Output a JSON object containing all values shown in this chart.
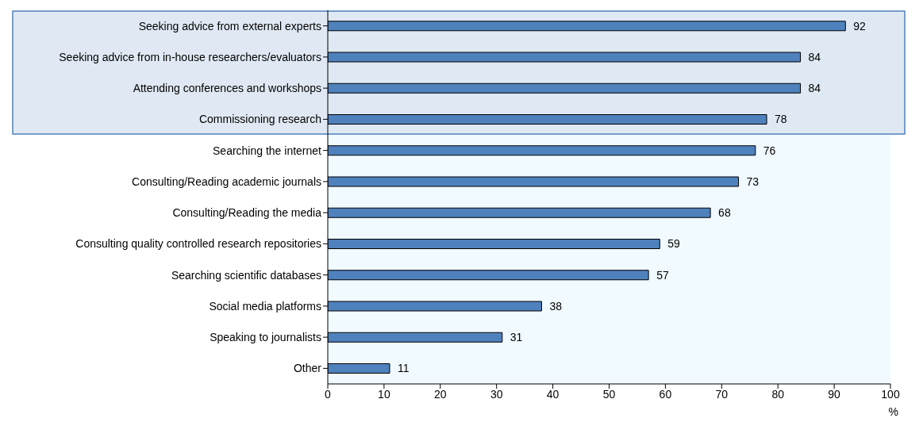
{
  "chart_data": {
    "type": "bar",
    "orientation": "horizontal",
    "xlabel": "%",
    "categories": [
      "Seeking advice from external experts",
      "Seeking advice from in-house researchers/evaluators",
      "Attending conferences and workshops",
      "Commissioning research",
      "Searching the internet",
      "Consulting/Reading academic journals",
      "Consulting/Reading the media",
      "Consulting quality controlled research repositories",
      "Searching scientific databases",
      "Social media platforms",
      "Speaking to journalists",
      "Other"
    ],
    "values": [
      92,
      84,
      84,
      78,
      76,
      73,
      68,
      59,
      57,
      38,
      31,
      11
    ],
    "color": "#4f81bd",
    "data_labels": true,
    "xlim": [
      0,
      100
    ],
    "xticks": [
      0,
      10,
      20,
      30,
      40,
      50,
      60,
      70,
      80,
      90,
      100
    ],
    "bands": [
      {
        "axis": "y",
        "from": "Seeking advice from external experts",
        "to": "Commissioning research",
        "color": "#dbe5f1"
      }
    ],
    "grid": false
  }
}
